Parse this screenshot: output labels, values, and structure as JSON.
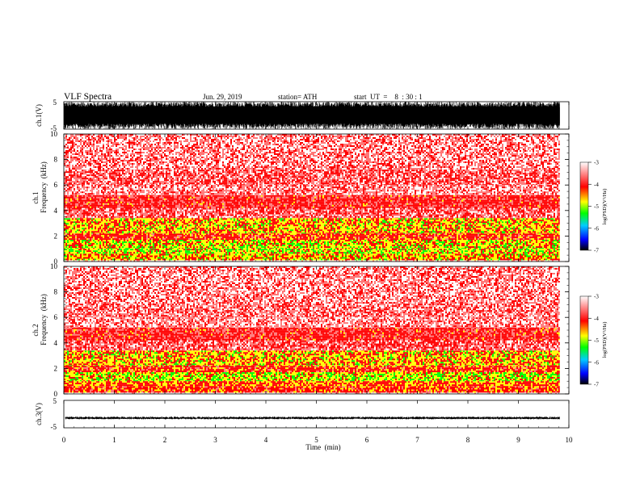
{
  "header": {
    "title": "VLF  Spectra",
    "date": "Jun. 29, 2019",
    "station": "station= ATH",
    "start_ut": "start  UT  =    8  : 30 : 1"
  },
  "chart_data": [
    {
      "panel": "ch1-waveform",
      "type": "line",
      "ylabel": "ch.1(V)",
      "yticks": [
        "5",
        "-5"
      ],
      "ylim": [
        -5,
        5
      ],
      "xlim": [
        0,
        10
      ],
      "data_extent_x": [
        0,
        9.82
      ],
      "description_of_trace": "dense noise saturating full range",
      "series": [
        {
          "amplitude_envelope": [
            -5,
            5
          ]
        }
      ]
    },
    {
      "panel": "ch1-spectrogram",
      "type": "heatmap",
      "ylabel": "ch.1\nFrequency  (kHz)",
      "ylabel_line1": "ch.1",
      "ylabel_line2": "Frequency  (kHz)",
      "yticks": [
        "0",
        "2",
        "4",
        "6",
        "8",
        "10"
      ],
      "ylim": [
        0,
        10
      ],
      "xlim": [
        0,
        10
      ],
      "data_extent_x": [
        0,
        9.82
      ],
      "bands_kHz_log_psd": [
        {
          "from": 0.0,
          "to": 0.1,
          "level": -3.0
        },
        {
          "from": 0.1,
          "to": 0.6,
          "level": -4.4
        },
        {
          "from": 0.6,
          "to": 1.0,
          "level": -4.6
        },
        {
          "from": 1.0,
          "to": 1.7,
          "level": -4.5
        },
        {
          "from": 1.7,
          "to": 2.2,
          "level": -4.0
        },
        {
          "from": 2.2,
          "to": 3.4,
          "level": -4.4
        },
        {
          "from": 3.4,
          "to": 4.2,
          "level": -3.5
        },
        {
          "from": 4.2,
          "to": 5.2,
          "level": -3.8
        },
        {
          "from": 5.2,
          "to": 6.0,
          "level": -3.3
        },
        {
          "from": 6.0,
          "to": 7.2,
          "level": -3.5
        },
        {
          "from": 7.2,
          "to": 10.0,
          "level": -3.3
        }
      ],
      "colorbar": {
        "label": "log(PSD)(V²/Hz)",
        "ticks": [
          "-3",
          "-4",
          "-5",
          "-6",
          "-7"
        ],
        "range": [
          -7,
          -3
        ]
      }
    },
    {
      "panel": "ch2-spectrogram",
      "type": "heatmap",
      "ylabel": "ch.2\nFrequency  (kHz)",
      "ylabel_line1": "ch.2",
      "ylabel_line2": "Frequency  (kHz)",
      "yticks": [
        "0",
        "2",
        "4",
        "6",
        "8",
        "10"
      ],
      "ylim": [
        0,
        10
      ],
      "xlim": [
        0,
        10
      ],
      "data_extent_x": [
        0,
        9.82
      ],
      "bands_kHz_log_psd": [
        {
          "from": 0.0,
          "to": 0.1,
          "level": -3.0
        },
        {
          "from": 0.1,
          "to": 0.6,
          "level": -4.0
        },
        {
          "from": 0.6,
          "to": 1.0,
          "level": -4.2
        },
        {
          "from": 1.0,
          "to": 1.7,
          "level": -4.6
        },
        {
          "from": 1.7,
          "to": 2.2,
          "level": -4.0
        },
        {
          "from": 2.2,
          "to": 3.4,
          "level": -4.4
        },
        {
          "from": 3.4,
          "to": 4.2,
          "level": -3.5
        },
        {
          "from": 4.2,
          "to": 5.2,
          "level": -3.8
        },
        {
          "from": 5.2,
          "to": 6.0,
          "level": -3.3
        },
        {
          "from": 6.0,
          "to": 7.2,
          "level": -3.4
        },
        {
          "from": 7.2,
          "to": 10.0,
          "level": -3.3
        }
      ],
      "colorbar": {
        "label": "log(PSD)(V²/Hz)",
        "ticks": [
          "-3",
          "-4",
          "-5",
          "-6",
          "-7"
        ],
        "range": [
          -7,
          -3
        ]
      }
    },
    {
      "panel": "ch3-waveform",
      "type": "line",
      "ylabel": "ch.3(V)",
      "yticks": [
        "5",
        "-5"
      ],
      "ylim": [
        -5,
        5
      ],
      "xlim": [
        0,
        10
      ],
      "data_extent_x": [
        0,
        9.82
      ],
      "series": [
        {
          "baseline": -1.5,
          "amplitude_envelope": [
            -1.9,
            -0.9
          ]
        }
      ]
    }
  ],
  "x_axis": {
    "label": "Time  (min)",
    "ticks": [
      "0",
      "1",
      "2",
      "3",
      "4",
      "5",
      "6",
      "7",
      "8",
      "9",
      "10"
    ],
    "range": [
      0,
      10
    ]
  },
  "colors": {
    "colormap": [
      "#000000",
      "#0000ff",
      "#00ff00",
      "#ffff00",
      "#ff0000",
      "#ffffff"
    ],
    "trace": "#000000",
    "background": "#ffffff"
  }
}
